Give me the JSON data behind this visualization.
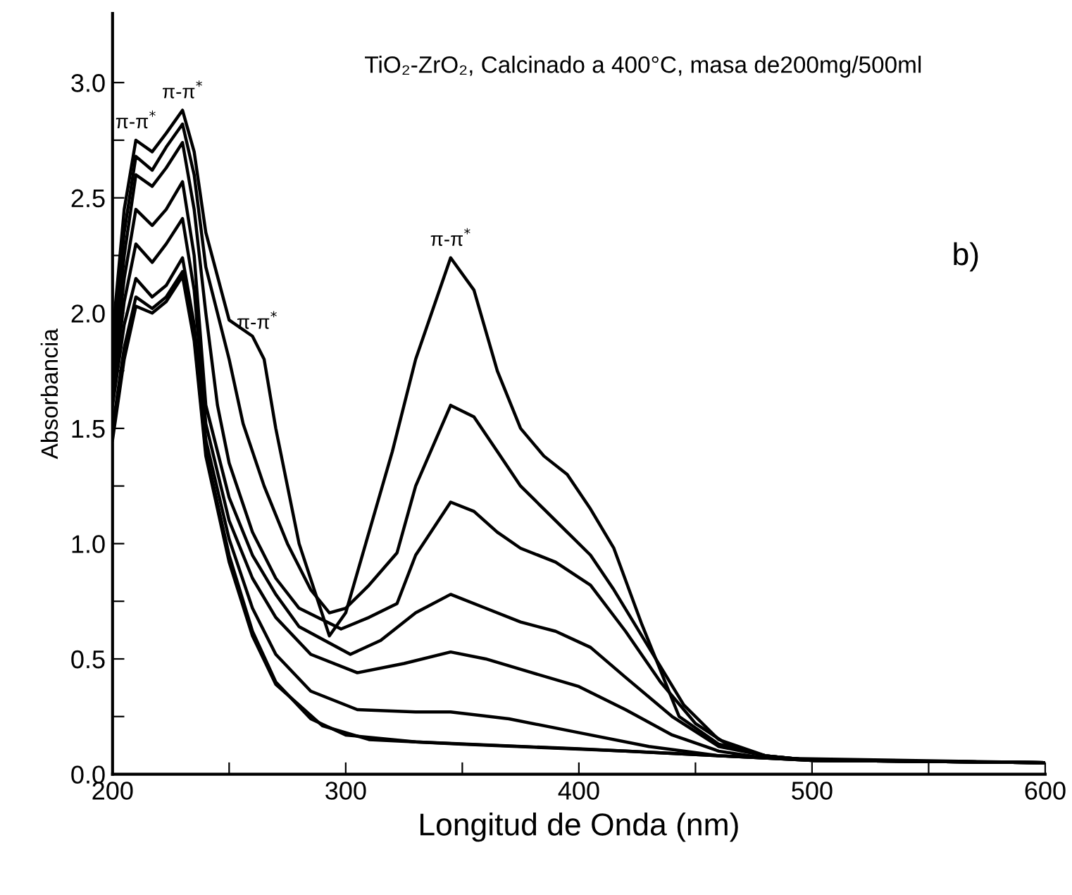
{
  "chart_data": {
    "type": "line",
    "title": "TiO₂-ZrO₂, Calcinado a 400°C, masa de200mg/500ml",
    "xlabel": "Longitud de Onda (nm)",
    "ylabel": "Absorbancia",
    "annotations": [
      {
        "text": "π-π$^{*}$",
        "x": 210,
        "y": 2.75
      },
      {
        "text": "π-π$^{*}$",
        "x": 230,
        "y": 2.88
      },
      {
        "text": "π-π$^{*}$",
        "x": 262,
        "y": 1.88
      },
      {
        "text": "π-π$^{*}$",
        "x": 345,
        "y": 2.24
      },
      "b)"
    ],
    "xlim": [
      200,
      600
    ],
    "ylim": [
      0,
      3.3
    ],
    "xticks": [
      200,
      {
        "value": 250,
        "label": null
      },
      300,
      {
        "value": 350,
        "label": null
      },
      400,
      {
        "value": 450,
        "label": null
      },
      500,
      {
        "value": 550,
        "label": null
      },
      600
    ],
    "yticks": [
      {
        "value": 0,
        "label": "0.0"
      },
      {
        "value": 0.25,
        "label": null
      },
      {
        "value": 0.5,
        "label": "0.5"
      },
      {
        "value": 0.75,
        "label": null
      },
      {
        "value": 1,
        "label": "1.0"
      },
      {
        "value": 1.25,
        "label": null
      },
      {
        "value": 1.5,
        "label": "1.5"
      },
      {
        "value": 1.75,
        "label": null
      },
      {
        "value": 2,
        "label": "2.0"
      },
      {
        "value": 2.25,
        "label": null
      },
      {
        "value": 2.5,
        "label": "2.5"
      },
      {
        "value": 2.75,
        "label": null
      },
      {
        "value": 3,
        "label": "3.0"
      }
    ],
    "grid": false,
    "legend": false,
    "marker": "none",
    "line_style": "solid",
    "series": [
      {
        "color": "#000000",
        "x": [
          200,
          205,
          210,
          217,
          223,
          230,
          235,
          240,
          250,
          260,
          265,
          270,
          280,
          293,
          300,
          310,
          320,
          330,
          345,
          355,
          365,
          375,
          385,
          395,
          405,
          415,
          427,
          443,
          460,
          480,
          500,
          550,
          600
        ],
        "values": [
          1.9,
          2.45,
          2.75,
          2.7,
          2.78,
          2.88,
          2.7,
          2.35,
          1.97,
          1.9,
          1.8,
          1.5,
          1.0,
          0.6,
          0.7,
          1.05,
          1.4,
          1.8,
          2.24,
          2.1,
          1.75,
          1.5,
          1.38,
          1.3,
          1.15,
          0.98,
          0.65,
          0.25,
          0.13,
          0.08,
          0.06,
          0.055,
          0.05
        ]
      },
      {
        "color": "#000000",
        "x": [
          200,
          205,
          210,
          217,
          223,
          230,
          235,
          240,
          250,
          256,
          265,
          275,
          285,
          293,
          300,
          310,
          322,
          330,
          345,
          355,
          365,
          375,
          385,
          395,
          405,
          415,
          430,
          445,
          460,
          480,
          500,
          600
        ],
        "values": [
          1.85,
          2.35,
          2.68,
          2.62,
          2.72,
          2.82,
          2.6,
          2.2,
          1.8,
          1.52,
          1.25,
          1.0,
          0.8,
          0.7,
          0.72,
          0.82,
          0.96,
          1.25,
          1.6,
          1.55,
          1.4,
          1.25,
          1.15,
          1.05,
          0.95,
          0.8,
          0.55,
          0.3,
          0.15,
          0.08,
          0.06,
          0.05
        ]
      },
      {
        "color": "#000000",
        "x": [
          200,
          205,
          210,
          217,
          223,
          230,
          235,
          240,
          245,
          250,
          260,
          270,
          280,
          298,
          310,
          322,
          330,
          345,
          355,
          365,
          375,
          390,
          405,
          420,
          435,
          450,
          465,
          480,
          500,
          600
        ],
        "values": [
          1.75,
          2.25,
          2.6,
          2.55,
          2.63,
          2.74,
          2.45,
          2.0,
          1.6,
          1.35,
          1.05,
          0.85,
          0.72,
          0.63,
          0.68,
          0.74,
          0.95,
          1.18,
          1.14,
          1.05,
          0.98,
          0.92,
          0.82,
          0.62,
          0.4,
          0.22,
          0.12,
          0.08,
          0.06,
          0.05
        ]
      },
      {
        "color": "#000000",
        "x": [
          200,
          205,
          210,
          217,
          223,
          230,
          235,
          240,
          250,
          260,
          270,
          280,
          302,
          315,
          330,
          345,
          360,
          375,
          390,
          405,
          420,
          440,
          460,
          480,
          500,
          600
        ],
        "values": [
          1.7,
          2.15,
          2.45,
          2.38,
          2.45,
          2.57,
          2.25,
          1.6,
          1.2,
          0.95,
          0.78,
          0.64,
          0.52,
          0.58,
          0.7,
          0.78,
          0.72,
          0.66,
          0.62,
          0.55,
          0.42,
          0.25,
          0.12,
          0.08,
          0.06,
          0.05
        ]
      },
      {
        "color": "#000000",
        "x": [
          200,
          205,
          210,
          217,
          223,
          230,
          235,
          240,
          250,
          260,
          270,
          285,
          305,
          325,
          345,
          360,
          380,
          400,
          420,
          440,
          460,
          480,
          500,
          600
        ],
        "values": [
          1.65,
          2.05,
          2.3,
          2.22,
          2.3,
          2.41,
          2.1,
          1.52,
          1.1,
          0.85,
          0.68,
          0.52,
          0.44,
          0.48,
          0.53,
          0.5,
          0.44,
          0.38,
          0.28,
          0.17,
          0.1,
          0.07,
          0.06,
          0.05
        ]
      },
      {
        "color": "#000000",
        "x": [
          200,
          205,
          210,
          217,
          223,
          230,
          235,
          240,
          250,
          260,
          270,
          285,
          305,
          330,
          345,
          370,
          400,
          430,
          460,
          500,
          600
        ],
        "values": [
          1.6,
          1.95,
          2.15,
          2.07,
          2.12,
          2.24,
          1.95,
          1.45,
          1.02,
          0.72,
          0.52,
          0.36,
          0.28,
          0.27,
          0.27,
          0.24,
          0.18,
          0.12,
          0.08,
          0.06,
          0.05
        ]
      },
      {
        "color": "#000000",
        "x": [
          200,
          205,
          210,
          217,
          223,
          230,
          235,
          240,
          250,
          260,
          270,
          285,
          300,
          330,
          400,
          460,
          500,
          600
        ],
        "values": [
          1.5,
          1.85,
          2.07,
          2.02,
          2.07,
          2.18,
          1.9,
          1.4,
          0.95,
          0.62,
          0.4,
          0.24,
          0.17,
          0.14,
          0.11,
          0.08,
          0.06,
          0.05
        ]
      },
      {
        "color": "#000000",
        "x": [
          200,
          205,
          210,
          217,
          223,
          230,
          235,
          240,
          250,
          260,
          270,
          290,
          310,
          350,
          420,
          480,
          600
        ],
        "values": [
          1.45,
          1.8,
          2.03,
          2.0,
          2.05,
          2.16,
          1.88,
          1.38,
          0.92,
          0.6,
          0.39,
          0.21,
          0.15,
          0.13,
          0.1,
          0.07,
          0.05
        ]
      }
    ]
  }
}
